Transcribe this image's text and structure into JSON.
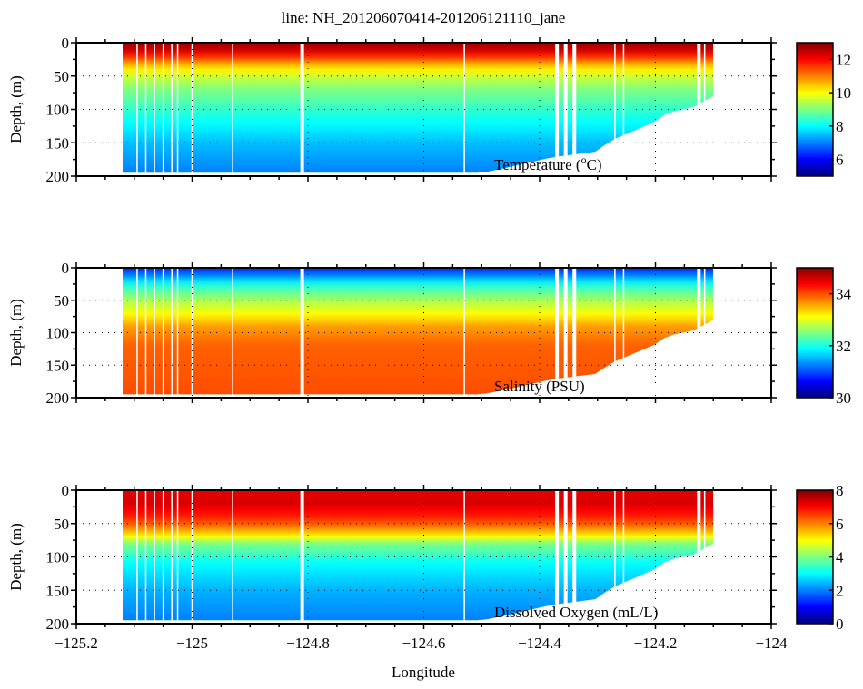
{
  "chart_data": {
    "type": "heatmap",
    "title": "line: NH_201206070414-201206121110_jane",
    "xlabel": "Longitude",
    "xlim": [
      -125.2,
      -124
    ],
    "xticks": [
      -125.2,
      -125,
      -124.8,
      -124.6,
      -124.4,
      -124.2,
      -124
    ],
    "xtick_labels": [
      "−125.2",
      "−125",
      "−124.8",
      "−124.6",
      "−124.4",
      "−124.2",
      "−124"
    ],
    "grid": "dotted",
    "colormap": "jet",
    "data_lon_range": [
      -125.12,
      -124.1
    ],
    "bottom_profile": {
      "lon": [
        -125.12,
        -124.5,
        -124.46,
        -124.38,
        -124.3,
        -124.28,
        -124.2,
        -124.18,
        -124.14,
        -124.12,
        -124.11
      ],
      "depth": [
        195,
        195,
        188,
        172,
        163,
        148,
        118,
        105,
        98,
        92,
        80
      ]
    },
    "panels": [
      {
        "name": "temperature",
        "ylabel": "Depth, (m)",
        "ylim": [
          0,
          200
        ],
        "yticks": [
          0,
          50,
          100,
          150,
          200
        ],
        "label": "Temperature (",
        "label_sup": "o",
        "label_end": "C)",
        "clim": [
          5,
          13
        ],
        "cticks": [
          6,
          8,
          10,
          12
        ],
        "profile": {
          "depth": [
            0,
            15,
            30,
            45,
            70,
            110,
            150,
            195
          ],
          "value": [
            12.8,
            12.2,
            10.8,
            9.8,
            9.0,
            8.2,
            7.5,
            7.0
          ]
        }
      },
      {
        "name": "salinity",
        "ylabel": "Depth, (m)",
        "ylim": [
          0,
          200
        ],
        "yticks": [
          0,
          50,
          100,
          150,
          200
        ],
        "label": "Salinity (PSU)",
        "clim": [
          30,
          35
        ],
        "cticks": [
          30,
          32,
          34
        ],
        "profile": {
          "depth": [
            0,
            10,
            25,
            50,
            75,
            90,
            120,
            195
          ],
          "value": [
            30.8,
            31.2,
            32.0,
            32.7,
            33.2,
            33.6,
            33.9,
            34.0
          ]
        }
      },
      {
        "name": "oxygen",
        "ylabel": "Depth, (m)",
        "ylim": [
          0,
          200
        ],
        "yticks": [
          0,
          50,
          100,
          150,
          200
        ],
        "label": "Dissolved Oxygen (mL/L)",
        "clim": [
          0,
          8
        ],
        "cticks": [
          0,
          2,
          4,
          6,
          8
        ],
        "profile": {
          "depth": [
            0,
            20,
            45,
            65,
            80,
            110,
            150,
            195
          ],
          "value": [
            7.2,
            7.3,
            6.6,
            5.4,
            4.0,
            3.0,
            2.4,
            2.0
          ]
        }
      }
    ]
  }
}
